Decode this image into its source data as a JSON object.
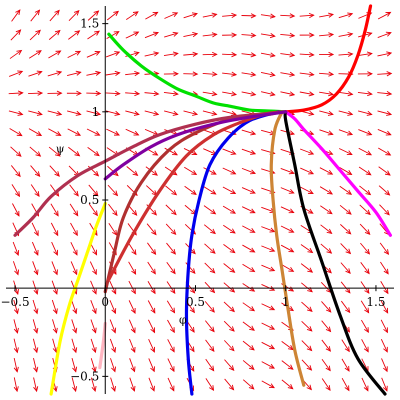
{
  "chart_data": {
    "type": "line",
    "title": "",
    "xlabel": "φ",
    "ylabel": "ψ",
    "xlim": [
      -0.55,
      1.6
    ],
    "ylim": [
      -0.6,
      1.6
    ],
    "grid": false,
    "legend": "none",
    "x_ticks": [
      {
        "value": -0.5,
        "label": "−0.5"
      },
      {
        "value": 0,
        "label": "0"
      },
      {
        "value": 0.5,
        "label": "0.5"
      },
      {
        "value": 1,
        "label": "1"
      },
      {
        "value": 1.5,
        "label": "1.5"
      }
    ],
    "y_ticks": [
      {
        "value": -0.5,
        "label": "−0.5"
      },
      {
        "value": 0.5,
        "label": "0.5"
      },
      {
        "value": 1,
        "label": "1"
      },
      {
        "value": 1.5,
        "label": "1.5"
      }
    ],
    "direction_field": {
      "color": "#e8000b",
      "x_range": [
        -0.55,
        1.6
      ],
      "y_range": [
        -0.6,
        1.6
      ],
      "nx": 20,
      "ny": 20,
      "critical_point": [
        1,
        1
      ]
    },
    "series": [
      {
        "color": "#00e000",
        "points": [
          [
            0.02,
            1.44
          ],
          [
            0.1,
            1.35
          ],
          [
            0.2,
            1.26
          ],
          [
            0.3,
            1.19
          ],
          [
            0.4,
            1.13
          ],
          [
            0.5,
            1.09
          ],
          [
            0.6,
            1.05
          ],
          [
            0.7,
            1.03
          ],
          [
            0.8,
            1.01
          ],
          [
            0.9,
            1.005
          ],
          [
            1.0,
            1.0
          ]
        ]
      },
      {
        "color": "#ff0000",
        "points": [
          [
            1.0,
            1.0
          ],
          [
            1.1,
            1.01
          ],
          [
            1.2,
            1.04
          ],
          [
            1.28,
            1.1
          ],
          [
            1.35,
            1.2
          ],
          [
            1.4,
            1.32
          ],
          [
            1.44,
            1.46
          ],
          [
            1.47,
            1.6
          ]
        ]
      },
      {
        "color": "#ff00ff",
        "points": [
          [
            1.0,
            1.0
          ],
          [
            1.05,
            0.96
          ],
          [
            1.1,
            0.9
          ],
          [
            1.2,
            0.79
          ],
          [
            1.3,
            0.67
          ],
          [
            1.4,
            0.55
          ],
          [
            1.5,
            0.43
          ],
          [
            1.58,
            0.3
          ]
        ]
      },
      {
        "color": "#000000",
        "points": [
          [
            1.0,
            1.0
          ],
          [
            1.0,
            0.95
          ],
          [
            1.05,
            0.7
          ],
          [
            1.1,
            0.45
          ],
          [
            1.2,
            0.15
          ],
          [
            1.3,
            -0.15
          ],
          [
            1.4,
            -0.4
          ],
          [
            1.55,
            -0.6
          ]
        ]
      },
      {
        "color": "#cd8535",
        "points": [
          [
            0.98,
            1.0
          ],
          [
            0.94,
            0.9
          ],
          [
            0.92,
            0.7
          ],
          [
            0.93,
            0.5
          ],
          [
            0.95,
            0.3
          ],
          [
            0.98,
            0.1
          ],
          [
            1.01,
            -0.1
          ],
          [
            1.05,
            -0.35
          ],
          [
            1.1,
            -0.55
          ]
        ]
      },
      {
        "color": "#0000ee",
        "points": [
          [
            0.96,
            1.0
          ],
          [
            0.8,
            0.95
          ],
          [
            0.68,
            0.85
          ],
          [
            0.58,
            0.7
          ],
          [
            0.52,
            0.5
          ],
          [
            0.48,
            0.3
          ],
          [
            0.46,
            0.1
          ],
          [
            0.45,
            -0.15
          ],
          [
            0.46,
            -0.4
          ],
          [
            0.48,
            -0.6
          ]
        ]
      },
      {
        "color": "#b03030",
        "points": [
          [
            0.0,
            -0.02
          ],
          [
            0.05,
            0.2
          ],
          [
            0.1,
            0.4
          ],
          [
            0.2,
            0.6
          ],
          [
            0.35,
            0.78
          ],
          [
            0.5,
            0.88
          ],
          [
            0.7,
            0.96
          ],
          [
            0.9,
            0.99
          ],
          [
            1.0,
            1.0
          ]
        ]
      },
      {
        "color": "#ce3030",
        "points": [
          [
            0.02,
            0.05
          ],
          [
            0.15,
            0.3
          ],
          [
            0.3,
            0.55
          ],
          [
            0.45,
            0.75
          ],
          [
            0.6,
            0.87
          ],
          [
            0.75,
            0.94
          ],
          [
            0.9,
            0.99
          ],
          [
            1.0,
            1.0
          ]
        ]
      },
      {
        "color": "#b03050",
        "points": [
          [
            -0.5,
            0.3
          ],
          [
            -0.4,
            0.4
          ],
          [
            -0.3,
            0.52
          ],
          [
            -0.15,
            0.64
          ],
          [
            0.0,
            0.72
          ],
          [
            0.15,
            0.8
          ],
          [
            0.3,
            0.87
          ],
          [
            0.5,
            0.93
          ],
          [
            0.7,
            0.97
          ],
          [
            1.0,
            1.0
          ]
        ]
      },
      {
        "color": "#8000a0",
        "points": [
          [
            0.0,
            0.62
          ],
          [
            0.1,
            0.7
          ],
          [
            0.25,
            0.8
          ],
          [
            0.4,
            0.87
          ],
          [
            0.6,
            0.93
          ],
          [
            0.8,
            0.97
          ],
          [
            1.0,
            1.0
          ]
        ]
      },
      {
        "color": "#ffff00",
        "points": [
          [
            0.0,
            0.48
          ],
          [
            -0.05,
            0.35
          ],
          [
            -0.1,
            0.2
          ],
          [
            -0.15,
            0.05
          ],
          [
            -0.2,
            -0.1
          ],
          [
            -0.25,
            -0.3
          ],
          [
            -0.3,
            -0.6
          ]
        ]
      },
      {
        "color": "#ffb6c1",
        "points": [
          [
            0.0,
            -0.2
          ],
          [
            -0.01,
            -0.3
          ],
          [
            -0.03,
            -0.45
          ]
        ]
      }
    ]
  }
}
